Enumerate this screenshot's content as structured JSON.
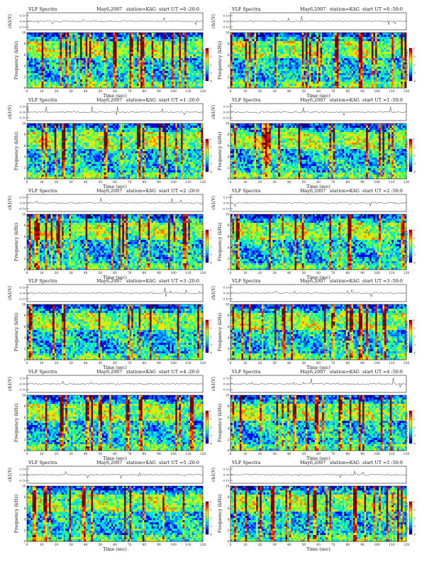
{
  "colors": {
    "colormap": [
      "#00007f",
      "#0000ff",
      "#0072ff",
      "#00d4ff",
      "#2bff7f",
      "#9dff2a",
      "#ffe100",
      "#ff7a00",
      "#ff1000",
      "#7f0000"
    ],
    "background": "#ffffff",
    "axis": "#111111"
  },
  "chart_data": [
    {
      "type": "heatmap",
      "title_left": "VLF Spectra",
      "title_date": "May6,2007",
      "title_station": "station=KAG",
      "title_start": "start UT =0 :20:0",
      "top_ylabel": "ch1(V)",
      "top_yticks": [
        "0.10",
        "0.00",
        "-0.10"
      ],
      "ylabel": "Frequency (kHz)",
      "xlabel": "Time (sec)",
      "xticks": [
        "0",
        "10",
        "20",
        "30",
        "40",
        "50",
        "60",
        "70",
        "80",
        "90",
        "100",
        "110",
        "120"
      ],
      "yticks": [
        "0",
        "2",
        "4",
        "6",
        "8",
        "10"
      ],
      "xlim": [
        0,
        120
      ],
      "ylim": [
        0,
        10
      ],
      "colorbar_label": "log(PSD)(V²/Hz)",
      "colorbar_ticks": [
        "0",
        "-1",
        "-2",
        "-3",
        "-4"
      ]
    },
    {
      "type": "heatmap",
      "title_left": "VLF Spectra",
      "title_date": "May6,2007",
      "title_station": "station=KAG",
      "title_start": "start UT =0 :50:0",
      "top_ylabel": "ch1(V)",
      "top_yticks": [
        "0.10",
        "0.00",
        "-0.10"
      ],
      "ylabel": "Frequency (kHz)",
      "xlabel": "Time (sec)",
      "xticks": [
        "0",
        "10",
        "20",
        "30",
        "40",
        "50",
        "60",
        "70",
        "80",
        "90",
        "100",
        "110",
        "120"
      ],
      "yticks": [
        "0",
        "2",
        "4",
        "6",
        "8",
        "10"
      ],
      "xlim": [
        0,
        120
      ],
      "ylim": [
        0,
        10
      ],
      "colorbar_label": "log(PSD)(V²/Hz)",
      "colorbar_ticks": [
        "0",
        "-1",
        "-2",
        "-3",
        "-4"
      ]
    },
    {
      "type": "heatmap",
      "title_left": "VLF Spectra",
      "title_date": "May6,2007",
      "title_station": "station=KAG",
      "title_start": "start UT =1 :20:0",
      "top_ylabel": "ch1(V)",
      "top_yticks": [
        "0.10",
        "0.00",
        "-0.10"
      ],
      "ylabel": "Frequency (kHz)",
      "xlabel": "Time (sec)",
      "xticks": [
        "0",
        "10",
        "20",
        "30",
        "40",
        "50",
        "60",
        "70",
        "80",
        "90",
        "100",
        "110",
        "120"
      ],
      "yticks": [
        "0",
        "2",
        "4",
        "6",
        "8",
        "10"
      ],
      "xlim": [
        0,
        120
      ],
      "ylim": [
        0,
        10
      ],
      "colorbar_label": "log(PSD)(V²/Hz)",
      "colorbar_ticks": [
        "0",
        "-1",
        "-2",
        "-3",
        "-4"
      ]
    },
    {
      "type": "heatmap",
      "title_left": "VLF Spectra",
      "title_date": "May6,2007",
      "title_station": "station=KAG",
      "title_start": "start UT =1 :50:0",
      "top_ylabel": "ch1(V)",
      "top_yticks": [
        "0.10",
        "0.00",
        "-0.10"
      ],
      "ylabel": "Frequency (kHz)",
      "xlabel": "Time (sec)",
      "xticks": [
        "0",
        "10",
        "20",
        "30",
        "40",
        "50",
        "60",
        "70",
        "80",
        "90",
        "100",
        "110",
        "120"
      ],
      "yticks": [
        "0",
        "2",
        "4",
        "6",
        "8",
        "10"
      ],
      "xlim": [
        0,
        120
      ],
      "ylim": [
        0,
        10
      ],
      "colorbar_label": "log(PSD)(V²/Hz)",
      "colorbar_ticks": [
        "0",
        "-1",
        "-2",
        "-3",
        "-4"
      ]
    },
    {
      "type": "heatmap",
      "title_left": "VLF Spectra",
      "title_date": "May6,2007",
      "title_station": "station=KAG",
      "title_start": "start UT =2 :20:0",
      "top_ylabel": "ch1(V)",
      "top_yticks": [
        "0.10",
        "0.00",
        "-0.10"
      ],
      "ylabel": "Frequency (kHz)",
      "xlabel": "Time (sec)",
      "xticks": [
        "0",
        "10",
        "20",
        "30",
        "40",
        "50",
        "60",
        "70",
        "80",
        "90",
        "100",
        "110",
        "120"
      ],
      "yticks": [
        "0",
        "2",
        "4",
        "6",
        "8",
        "10"
      ],
      "xlim": [
        0,
        120
      ],
      "ylim": [
        0,
        10
      ],
      "colorbar_label": "log(PSD)(V²/Hz)",
      "colorbar_ticks": [
        "0",
        "-1",
        "-2",
        "-3",
        "-4"
      ]
    },
    {
      "type": "heatmap",
      "title_left": "VLF Spectra",
      "title_date": "May6,2007",
      "title_station": "station=KAG",
      "title_start": "start UT =2 :50:0",
      "top_ylabel": "ch1(V)",
      "top_yticks": [
        "0.10",
        "0.00",
        "-0.10"
      ],
      "ylabel": "Frequency (kHz)",
      "xlabel": "Time (sec)",
      "xticks": [
        "0",
        "10",
        "20",
        "30",
        "40",
        "50",
        "60",
        "70",
        "80",
        "90",
        "100",
        "110",
        "120"
      ],
      "yticks": [
        "0",
        "2",
        "4",
        "6",
        "8",
        "10"
      ],
      "xlim": [
        0,
        120
      ],
      "ylim": [
        0,
        10
      ],
      "colorbar_label": "log(PSD)(V²/Hz)",
      "colorbar_ticks": [
        "0",
        "-1",
        "-2",
        "-3",
        "-4"
      ]
    },
    {
      "type": "heatmap",
      "title_left": "VLF Spectra",
      "title_date": "May6,2007",
      "title_station": "station=KAG",
      "title_start": "start UT =3 :20:0",
      "top_ylabel": "ch1(V)",
      "top_yticks": [
        "0.10",
        "0.00",
        "-0.10"
      ],
      "ylabel": "Frequency (kHz)",
      "xlabel": "Time (sec)",
      "xticks": [
        "0",
        "10",
        "20",
        "30",
        "40",
        "50",
        "60",
        "70",
        "80",
        "90",
        "100",
        "110",
        "120"
      ],
      "yticks": [
        "0",
        "2",
        "4",
        "6",
        "8",
        "10"
      ],
      "xlim": [
        0,
        120
      ],
      "ylim": [
        0,
        10
      ],
      "colorbar_label": "log(PSD)(V²/Hz)",
      "colorbar_ticks": [
        "0",
        "-1",
        "-2",
        "-3",
        "-4"
      ]
    },
    {
      "type": "heatmap",
      "title_left": "VLF Spectra",
      "title_date": "May6,2007",
      "title_station": "station=KAG",
      "title_start": "start UT =3 :50:0",
      "top_ylabel": "ch1(V)",
      "top_yticks": [
        "0.10",
        "0.00",
        "-0.10"
      ],
      "ylabel": "Frequency (kHz)",
      "xlabel": "Time (sec)",
      "xticks": [
        "0",
        "10",
        "20",
        "30",
        "40",
        "50",
        "60",
        "70",
        "80",
        "90",
        "100",
        "110",
        "120"
      ],
      "yticks": [
        "0",
        "2",
        "4",
        "6",
        "8",
        "10"
      ],
      "xlim": [
        0,
        120
      ],
      "ylim": [
        0,
        10
      ],
      "colorbar_label": "log(PSD)(V²/Hz)",
      "colorbar_ticks": [
        "0",
        "-1",
        "-2",
        "-3",
        "-4"
      ]
    },
    {
      "type": "heatmap",
      "title_left": "VLF Spectra",
      "title_date": "May6,2007",
      "title_station": "station=KAG",
      "title_start": "start UT =4 :20:0",
      "top_ylabel": "ch1(V)",
      "top_yticks": [
        "0.10",
        "0.00",
        "-0.10"
      ],
      "ylabel": "Frequency (kHz)",
      "xlabel": "Time (sec)",
      "xticks": [
        "0",
        "10",
        "20",
        "30",
        "40",
        "50",
        "60",
        "70",
        "80",
        "90",
        "100",
        "110",
        "120"
      ],
      "yticks": [
        "0",
        "2",
        "4",
        "6",
        "8",
        "10"
      ],
      "xlim": [
        0,
        120
      ],
      "ylim": [
        0,
        10
      ],
      "colorbar_label": "log(PSD)(V²/Hz)",
      "colorbar_ticks": [
        "0",
        "-1",
        "-2",
        "-3",
        "-4"
      ]
    },
    {
      "type": "heatmap",
      "title_left": "VLF Spectra",
      "title_date": "May6,2007",
      "title_station": "station=KAG",
      "title_start": "start UT =4 :50:0",
      "top_ylabel": "ch1(V)",
      "top_yticks": [
        "0.10",
        "0.00",
        "-0.10"
      ],
      "ylabel": "Frequency (kHz)",
      "xlabel": "Time (sec)",
      "xticks": [
        "0",
        "10",
        "20",
        "30",
        "40",
        "50",
        "60",
        "70",
        "80",
        "90",
        "100",
        "110",
        "120"
      ],
      "yticks": [
        "0",
        "2",
        "4",
        "6",
        "8",
        "10"
      ],
      "xlim": [
        0,
        120
      ],
      "ylim": [
        0,
        10
      ],
      "colorbar_label": "log(PSD)(V²/Hz)",
      "colorbar_ticks": [
        "0",
        "-1",
        "-2",
        "-3",
        "-4"
      ]
    },
    {
      "type": "heatmap",
      "title_left": "VLF Spectra",
      "title_date": "May6,2007",
      "title_station": "station=KAG",
      "title_start": "start UT =5 :20:0",
      "top_ylabel": "ch1(V)",
      "top_yticks": [
        "0.10",
        "0.00",
        "-0.10"
      ],
      "ylabel": "Frequency (kHz)",
      "xlabel": "Time (sec)",
      "xticks": [
        "0",
        "10",
        "20",
        "30",
        "40",
        "50",
        "60",
        "70",
        "80",
        "90",
        "100",
        "110",
        "120"
      ],
      "yticks": [
        "0",
        "2",
        "4",
        "6",
        "8",
        "10"
      ],
      "xlim": [
        0,
        120
      ],
      "ylim": [
        0,
        10
      ],
      "colorbar_label": "log(PSD)(V²/Hz)",
      "colorbar_ticks": [
        "0",
        "-1",
        "-2",
        "-3",
        "-4"
      ]
    },
    {
      "type": "heatmap",
      "title_left": "VLF Spectra",
      "title_date": "May6,2007",
      "title_station": "station=KAG",
      "title_start": "start UT =5 :50:0",
      "top_ylabel": "ch1(V)",
      "top_yticks": [
        "0.10",
        "0.00",
        "-0.10"
      ],
      "ylabel": "Frequency (kHz)",
      "xlabel": "Time (sec)",
      "xticks": [
        "0",
        "10",
        "20",
        "30",
        "40",
        "50",
        "60",
        "70",
        "80",
        "90",
        "100",
        "110",
        "120"
      ],
      "yticks": [
        "0",
        "2",
        "4",
        "6",
        "8",
        "10"
      ],
      "xlim": [
        0,
        120
      ],
      "ylim": [
        0,
        10
      ],
      "colorbar_label": "log(PSD)(V²/Hz)",
      "colorbar_ticks": [
        "0",
        "-1",
        "-2",
        "-3",
        "-4"
      ]
    }
  ]
}
